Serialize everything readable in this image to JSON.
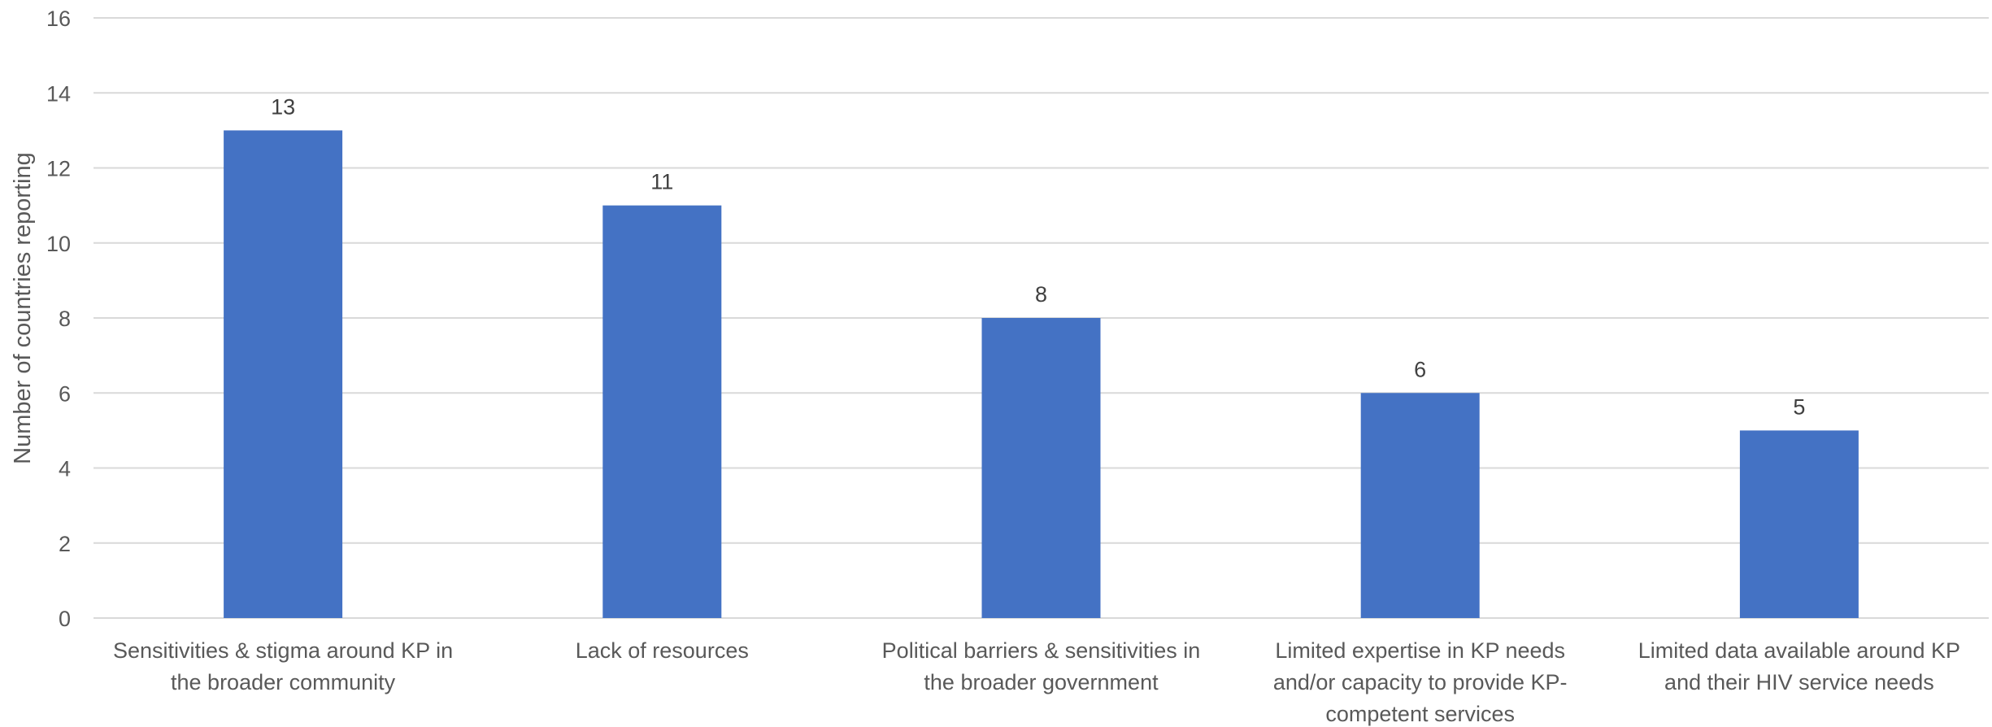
{
  "chart_data": {
    "type": "bar",
    "title": "",
    "xlabel": "",
    "ylabel": "Number of countries reporting",
    "ylim": [
      0,
      16
    ],
    "yticks": [
      0,
      2,
      4,
      6,
      8,
      10,
      12,
      14,
      16
    ],
    "grid": true,
    "legend": "none",
    "categories": [
      [
        "Sensitivities & stigma around KP in",
        "the broader community"
      ],
      [
        "Lack of resources"
      ],
      [
        "Political barriers & sensitivities in",
        "the broader government"
      ],
      [
        "Limited expertise in KP needs",
        "and/or capacity to provide KP-",
        "competent services"
      ],
      [
        "Limited data available around KP",
        "and their HIV service needs"
      ]
    ],
    "values": [
      13,
      11,
      8,
      6,
      5
    ],
    "data_labels": [
      "13",
      "11",
      "8",
      "6",
      "5"
    ],
    "colors": {
      "bar": "#4472C4",
      "grid": "#D9D9D9",
      "axis_text": "#595959",
      "label_text": "#404040"
    }
  }
}
